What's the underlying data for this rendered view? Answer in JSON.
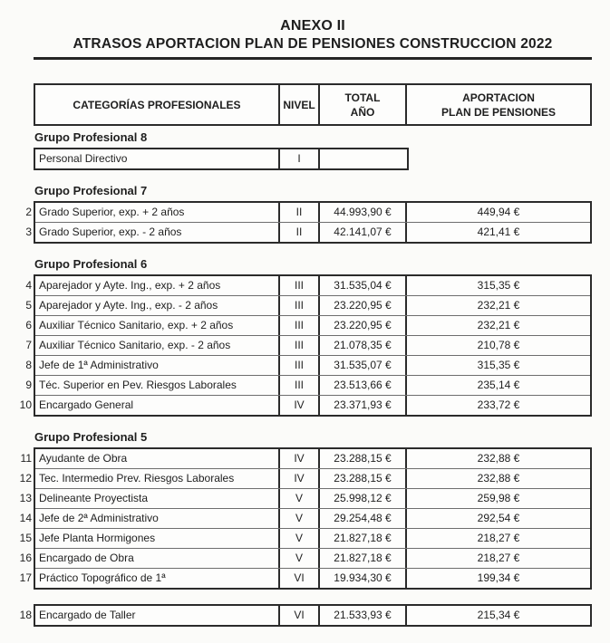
{
  "doc": {
    "title_line1": "ANEXO II",
    "title_line2": "ATRASOS APORTACION PLAN DE PENSIONES CONSTRUCCION 2022"
  },
  "table": {
    "header": {
      "categories": "CATEGORÍAS PROFESIONALES",
      "level": "NIVEL",
      "total_line1": "TOTAL",
      "total_line2": "AÑO",
      "aportacion_line1": "APORTACION",
      "aportacion_line2": "PLAN DE PENSIONES"
    },
    "groups": [
      {
        "label": "Grupo Profesional 8",
        "narrow": true,
        "rows": [
          {
            "num": "",
            "category": "Personal Directivo",
            "level": "I",
            "total": "",
            "aportacion": null
          }
        ]
      },
      {
        "label": "Grupo Profesional 7",
        "rows": [
          {
            "num": "2",
            "category": "Grado Superior, exp. + 2 años",
            "level": "II",
            "total": "44.993,90 €",
            "aportacion": "449,94 €"
          },
          {
            "num": "3",
            "category": "Grado Superior, exp. - 2 años",
            "level": "II",
            "total": "42.141,07 €",
            "aportacion": "421,41 €"
          }
        ]
      },
      {
        "label": "Grupo Profesional 6",
        "rows": [
          {
            "num": "4",
            "category": "Aparejador y Ayte. Ing., exp. + 2 años",
            "level": "III",
            "total": "31.535,04 €",
            "aportacion": "315,35 €"
          },
          {
            "num": "5",
            "category": "Aparejador y Ayte. Ing., exp. - 2 años",
            "level": "III",
            "total": "23.220,95 €",
            "aportacion": "232,21 €"
          },
          {
            "num": "6",
            "category": "Auxiliar Técnico Sanitario, exp. + 2 años",
            "level": "III",
            "total": "23.220,95 €",
            "aportacion": "232,21 €"
          },
          {
            "num": "7",
            "category": "Auxiliar Técnico Sanitario, exp. - 2 años",
            "level": "III",
            "total": "21.078,35 €",
            "aportacion": "210,78 €"
          },
          {
            "num": "8",
            "category": "Jefe de 1ª Administrativo",
            "level": "III",
            "total": "31.535,07 €",
            "aportacion": "315,35 €"
          },
          {
            "num": "9",
            "category": "Téc. Superior en Pev. Riesgos Laborales",
            "level": "III",
            "total": "23.513,66 €",
            "aportacion": "235,14 €"
          },
          {
            "num": "10",
            "category": "Encargado General",
            "level": "IV",
            "total": "23.371,93 €",
            "aportacion": "233,72 €"
          }
        ]
      },
      {
        "label": "Grupo Profesional 5",
        "rows": [
          {
            "num": "11",
            "category": "Ayudante de Obra",
            "level": "IV",
            "total": "23.288,15 €",
            "aportacion": "232,88 €"
          },
          {
            "num": "12",
            "category": "Tec. Intermedio Prev. Riesgos Laborales",
            "level": "IV",
            "total": "23.288,15 €",
            "aportacion": "232,88 €"
          },
          {
            "num": "13",
            "category": "Delineante Proyectista",
            "level": "V",
            "total": "25.998,12 €",
            "aportacion": "259,98 €"
          },
          {
            "num": "14",
            "category": "Jefe de 2ª Administrativo",
            "level": "V",
            "total": "29.254,48 €",
            "aportacion": "292,54 €"
          },
          {
            "num": "15",
            "category": "Jefe Planta Hormigones",
            "level": "V",
            "total": "21.827,18 €",
            "aportacion": "218,27 €"
          },
          {
            "num": "16",
            "category": "Encargado de Obra",
            "level": "V",
            "total": "21.827,18 €",
            "aportacion": "218,27 €"
          },
          {
            "num": "17",
            "category": "Práctico Topográfico de 1ª",
            "level": "VI",
            "total": "19.934,30 €",
            "aportacion": "199,34 €"
          }
        ]
      },
      {
        "label": "",
        "rows": [
          {
            "num": "18",
            "category": "Encargado de Taller",
            "level": "VI",
            "total": "21.533,93 €",
            "aportacion": "215,34 €"
          }
        ]
      }
    ]
  },
  "colors": {
    "background": "#fbfbf9",
    "ink": "#1e1e1e",
    "border_heavy": "#2b2b2b",
    "border_thin": "#6e6e6e"
  }
}
